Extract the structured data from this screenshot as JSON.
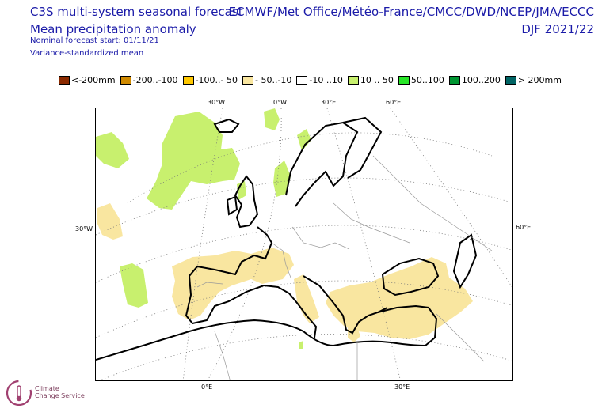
{
  "header": {
    "title_line1": "C3S multi-system seasonal forecast",
    "title_line2": "Mean precipitation anomaly",
    "nominal_start": "Nominal forecast start: 01/11/21",
    "method": "Variance-standardized mean",
    "centres": "ECMWF/Met Office/Météo-France/CMCC/DWD/NCEP/JMA/ECCC",
    "season": "DJF 2021/22"
  },
  "legend": [
    {
      "label": "<-200mm",
      "color": "#8b2a00"
    },
    {
      "label": "-200..-100",
      "color": "#d08a00"
    },
    {
      "label": "-100..- 50",
      "color": "#ffc800"
    },
    {
      "label": "- 50..-10",
      "color": "#f9e6a0"
    },
    {
      "label": "-10 ..10",
      "color": "#ffffff"
    },
    {
      "label": "10 .. 50",
      "color": "#c8f06e"
    },
    {
      "label": "50..100",
      "color": "#28e628"
    },
    {
      "label": "100..200",
      "color": "#009632"
    },
    {
      "label": "> 200mm",
      "color": "#006464"
    }
  ],
  "map": {
    "grid_labels": {
      "top_30w": "30°W",
      "top_0e": "0°W",
      "top_30e": "30°E",
      "top_60e": "60°E",
      "left_30w": "30°W",
      "right_60e": "60°E",
      "bottom_0e": "0°E",
      "bottom_30e": "30°E"
    },
    "dry_color": "#f9e6a0",
    "wet_color": "#c8f06e"
  },
  "logo": {
    "line1": "Climate",
    "line2": "Change Service"
  }
}
